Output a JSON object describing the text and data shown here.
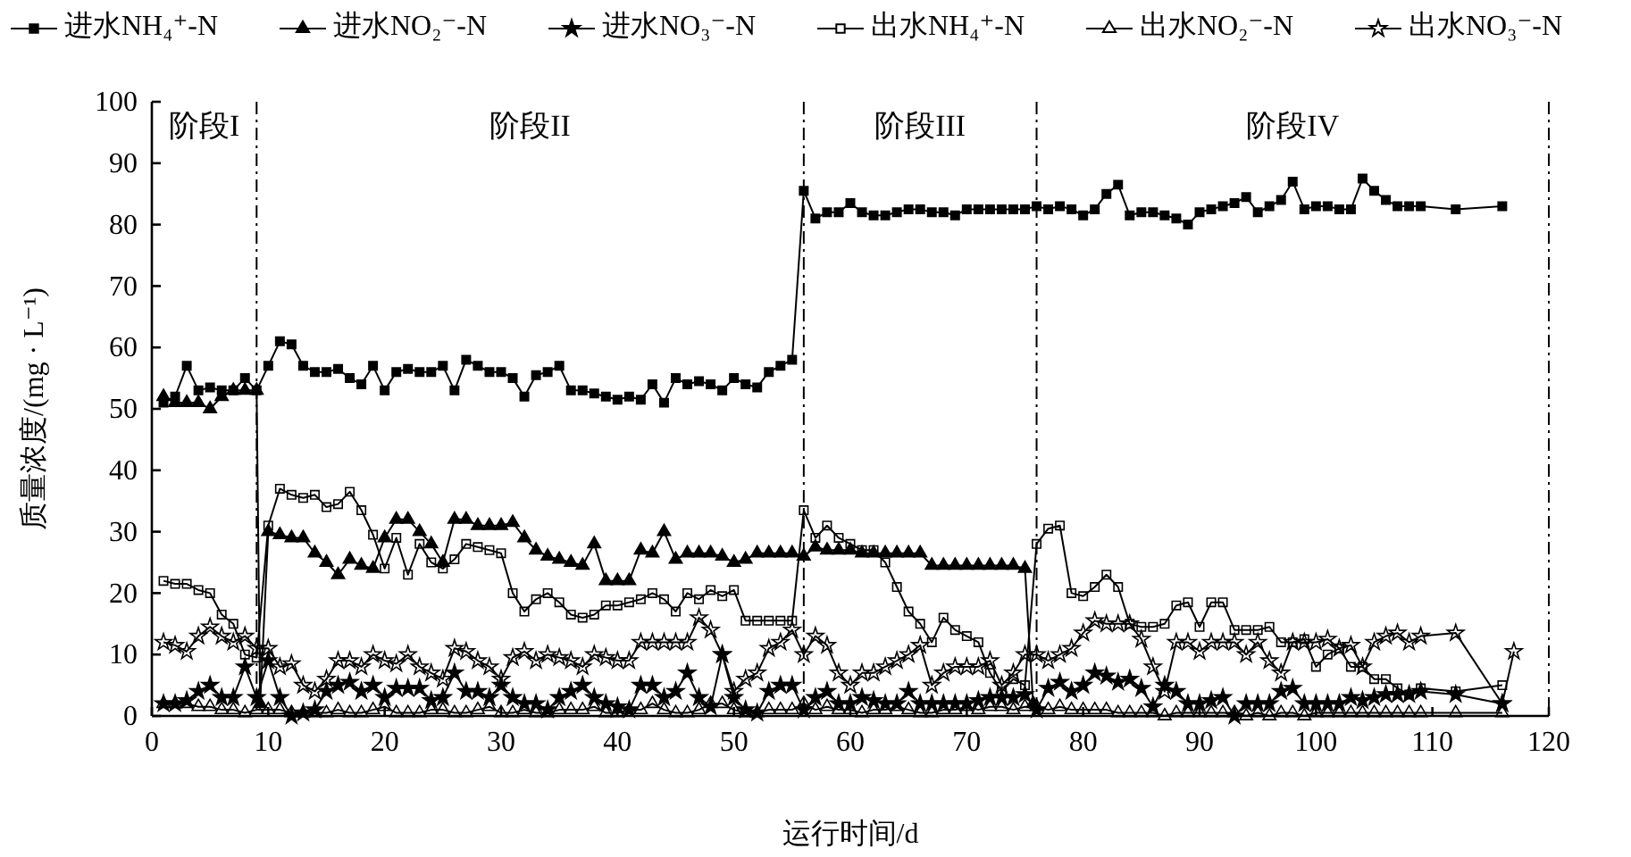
{
  "chart_data": {
    "type": "line",
    "xlabel": "运行时间/d",
    "ylabel": "质量浓度/(mg · L⁻¹)",
    "xlim": [
      0,
      120
    ],
    "xticks": [
      0,
      10,
      20,
      30,
      40,
      50,
      60,
      70,
      80,
      90,
      100,
      110,
      120
    ],
    "ylim": [
      0,
      100
    ],
    "yticks": [
      0,
      10,
      20,
      30,
      40,
      50,
      60,
      70,
      80,
      90,
      100
    ],
    "grid": false,
    "legend": "top",
    "ref_lines": [
      {
        "axis": "x",
        "value": 9,
        "line_style": "dashed"
      },
      {
        "axis": "x",
        "value": 56,
        "line_style": "dashed"
      },
      {
        "axis": "x",
        "value": 76,
        "line_style": "dashed"
      },
      {
        "axis": "x",
        "value": 120,
        "line_style": "dashed"
      }
    ],
    "annotations": [
      "阶段I",
      "阶段II",
      "阶段III",
      "阶段IV"
    ],
    "series": [
      {
        "name": "进水NH₄⁺-N",
        "color": "#000000",
        "marker": "square",
        "x": [
          1,
          2,
          3,
          4,
          5,
          6,
          7,
          8,
          9,
          10,
          11,
          12,
          13,
          14,
          15,
          16,
          17,
          18,
          19,
          20,
          21,
          22,
          23,
          24,
          25,
          26,
          27,
          28,
          29,
          30,
          31,
          32,
          33,
          34,
          35,
          36,
          37,
          38,
          39,
          40,
          41,
          42,
          43,
          44,
          45,
          46,
          47,
          48,
          49,
          50,
          51,
          52,
          53,
          54,
          55,
          56,
          57,
          58,
          59,
          60,
          61,
          62,
          63,
          64,
          65,
          66,
          67,
          68,
          69,
          70,
          71,
          72,
          73,
          74,
          75,
          76,
          77,
          78,
          79,
          80,
          81,
          82,
          83,
          84,
          85,
          86,
          87,
          88,
          89,
          90,
          91,
          92,
          93,
          94,
          95,
          96,
          97,
          98,
          99,
          100,
          101,
          102,
          103,
          104,
          105,
          106,
          107,
          108,
          109,
          112,
          116
        ],
        "values": [
          51,
          52,
          57,
          53,
          53.5,
          53,
          53,
          55,
          53,
          57,
          61,
          60.5,
          57,
          56,
          56,
          56.5,
          55,
          54,
          57,
          53,
          56,
          56.5,
          56,
          56,
          57,
          53,
          58,
          57,
          56,
          56,
          55,
          52,
          55.5,
          56,
          57,
          53,
          53,
          52.5,
          52,
          51.5,
          52,
          51.5,
          54,
          51,
          55,
          54,
          54.5,
          54,
          53,
          55,
          54,
          53.5,
          56,
          57,
          58,
          85.5,
          81,
          82,
          82,
          83.5,
          82,
          81.5,
          81.5,
          82,
          82.5,
          82.5,
          82,
          82,
          81.5,
          82.5,
          82.5,
          82.5,
          82.5,
          82.5,
          82.5,
          83,
          82.5,
          83,
          82.5,
          81.5,
          82.5,
          85,
          86.5,
          81.5,
          82,
          82,
          81.5,
          81,
          80,
          82,
          82.5,
          83,
          83.5,
          84.5,
          82,
          83,
          84,
          87,
          82.5,
          83,
          83,
          82.5,
          82.5,
          87.5,
          85.5,
          84,
          83,
          83,
          83,
          82.5,
          83
        ]
      },
      {
        "name": "进水NO₂⁻-N",
        "color": "#000000",
        "marker": "triangle",
        "x": [
          1,
          2,
          3,
          4,
          5,
          6,
          7,
          8,
          9,
          9.3,
          10,
          11,
          12,
          13,
          14,
          15,
          16,
          17,
          18,
          19,
          20,
          21,
          22,
          23,
          24,
          25,
          26,
          27,
          28,
          29,
          30,
          31,
          32,
          33,
          34,
          35,
          36,
          37,
          38,
          39,
          40,
          41,
          42,
          43,
          44,
          45,
          46,
          47,
          48,
          49,
          50,
          51,
          52,
          53,
          54,
          55,
          56,
          57,
          58,
          59,
          60,
          61,
          62,
          63,
          64,
          65,
          66,
          67,
          68,
          69,
          70,
          71,
          72,
          73,
          74,
          75,
          75.7
        ],
        "values": [
          52,
          51,
          51,
          51,
          50,
          52,
          53,
          53,
          53,
          2,
          30,
          29.5,
          29,
          29,
          26.5,
          25,
          23,
          25.5,
          24.5,
          24,
          29,
          32,
          32,
          30,
          28,
          25,
          32,
          32,
          31,
          31,
          31,
          31.5,
          29,
          27,
          26,
          25.5,
          25,
          24.5,
          28,
          22,
          22,
          22,
          27,
          26.5,
          30,
          25.5,
          26.5,
          26.5,
          26.5,
          26,
          25,
          25.5,
          26.5,
          26.5,
          26.5,
          26.5,
          26,
          27.5,
          27,
          27,
          27,
          26.5,
          26.5,
          26.5,
          26.5,
          26.5,
          26.5,
          24.5,
          24.5,
          24.5,
          24.5,
          24.5,
          24.5,
          24.5,
          24.5,
          24,
          2
        ]
      },
      {
        "name": "进水NO₃⁻-N",
        "color": "#000000",
        "marker": "star",
        "x": [
          1,
          2,
          3,
          4,
          5,
          6,
          7,
          8,
          9,
          10,
          11,
          12,
          13,
          14,
          15,
          16,
          17,
          18,
          19,
          20,
          21,
          22,
          23,
          24,
          25,
          26,
          27,
          28,
          29,
          30,
          31,
          32,
          33,
          34,
          35,
          36,
          37,
          38,
          39,
          40,
          41,
          42,
          43,
          44,
          45,
          46,
          47,
          48,
          49,
          50,
          51,
          52,
          53,
          54,
          55,
          56,
          57,
          58,
          59,
          60,
          61,
          62,
          63,
          64,
          65,
          66,
          67,
          68,
          69,
          70,
          71,
          72,
          73,
          74,
          75,
          76,
          77,
          78,
          79,
          80,
          81,
          82,
          83,
          84,
          85,
          86,
          87,
          88,
          89,
          90,
          91,
          92,
          93,
          94,
          95,
          96,
          97,
          98,
          99,
          100,
          101,
          102,
          103,
          104,
          105,
          106,
          107,
          108,
          109,
          112,
          116
        ],
        "values": [
          2,
          2,
          2.5,
          4,
          5,
          3,
          3,
          8,
          3,
          9,
          3,
          0,
          0.5,
          1,
          4,
          5,
          5.5,
          4,
          5,
          3,
          4.5,
          4.5,
          4.5,
          2.5,
          3,
          7,
          4,
          4,
          3,
          5,
          3,
          2,
          2,
          1,
          3,
          4,
          5,
          3,
          2,
          1.5,
          1,
          5,
          5,
          3,
          4,
          7,
          3,
          1.5,
          10,
          3,
          1,
          0.5,
          4,
          5,
          5,
          1,
          3,
          4,
          2,
          2,
          3,
          2.5,
          2,
          2,
          4,
          2,
          2,
          2,
          2,
          2,
          2.5,
          3,
          3,
          3,
          3.5,
          1,
          4.5,
          5.5,
          4,
          5,
          7,
          6.5,
          5.5,
          6,
          4.5,
          1.5,
          5,
          4,
          2,
          2,
          2.5,
          3,
          0,
          2,
          2,
          2,
          4,
          4.5,
          2,
          2,
          2,
          2,
          3,
          2.5,
          3,
          3.5,
          3.5,
          3.5,
          4,
          3.5,
          2
        ]
      },
      {
        "name": "出水NH₄⁺-N",
        "color": "#000000",
        "marker": "square-open",
        "x": [
          1,
          2,
          3,
          4,
          5,
          6,
          7,
          8,
          9,
          10,
          11,
          12,
          13,
          14,
          15,
          16,
          17,
          18,
          19,
          20,
          21,
          22,
          23,
          24,
          25,
          26,
          27,
          28,
          29,
          30,
          31,
          32,
          33,
          34,
          35,
          36,
          37,
          38,
          39,
          40,
          41,
          42,
          43,
          44,
          45,
          46,
          47,
          48,
          49,
          50,
          51,
          52,
          53,
          54,
          55,
          56,
          57,
          58,
          59,
          60,
          61,
          62,
          63,
          64,
          65,
          66,
          67,
          68,
          69,
          70,
          71,
          72,
          73,
          74,
          75,
          76,
          77,
          78,
          79,
          80,
          81,
          82,
          83,
          84,
          85,
          86,
          87,
          88,
          89,
          90,
          91,
          92,
          93,
          94,
          95,
          96,
          97,
          98,
          99,
          100,
          101,
          102,
          103,
          104,
          105,
          106,
          107,
          108,
          109,
          112,
          116
        ],
        "values": [
          22,
          21.5,
          21.5,
          20.5,
          20,
          16.5,
          15,
          10,
          9.5,
          31,
          37,
          36,
          35.5,
          36,
          34,
          34.5,
          36.5,
          33.5,
          29.5,
          24,
          29,
          23,
          28,
          25,
          24,
          25.5,
          28,
          27.5,
          27,
          26.5,
          20,
          17,
          19,
          20,
          18.5,
          16.5,
          16,
          16.5,
          18,
          18,
          18.5,
          19,
          20,
          19,
          17,
          20,
          19,
          20.5,
          19.5,
          20.5,
          15.5,
          15.5,
          15.5,
          15.5,
          15.5,
          33.5,
          29,
          31,
          29,
          28,
          27,
          27,
          25,
          21,
          17,
          15,
          12,
          16,
          14,
          13,
          12,
          7,
          4,
          6,
          5,
          28,
          30.5,
          31,
          20,
          19.5,
          21,
          23,
          21,
          15,
          14.5,
          14.5,
          15,
          18,
          18.5,
          14.5,
          18.5,
          18.5,
          14,
          14,
          14,
          14.5,
          12,
          12,
          12.5,
          8,
          10,
          11,
          8,
          8,
          6,
          6,
          4.5,
          3.5,
          4.5,
          4,
          5
        ]
      },
      {
        "name": "出水NO₂⁻-N",
        "color": "#000000",
        "marker": "triangle-open",
        "x": [
          1,
          2,
          3,
          4,
          5,
          6,
          7,
          8,
          9,
          10,
          11,
          12,
          13,
          14,
          15,
          16,
          17,
          18,
          19,
          20,
          21,
          22,
          23,
          24,
          25,
          26,
          27,
          28,
          29,
          30,
          31,
          32,
          33,
          34,
          35,
          36,
          37,
          38,
          39,
          40,
          41,
          42,
          43,
          44,
          45,
          46,
          47,
          48,
          49,
          50,
          51,
          52,
          53,
          54,
          55,
          56,
          57,
          58,
          59,
          60,
          61,
          62,
          63,
          64,
          65,
          66,
          67,
          68,
          69,
          70,
          71,
          72,
          73,
          74,
          75,
          76,
          77,
          78,
          79,
          80,
          81,
          82,
          83,
          84,
          85,
          86,
          87,
          88,
          89,
          90,
          91,
          92,
          93,
          94,
          95,
          96,
          97,
          98,
          99,
          100,
          101,
          102,
          103,
          104,
          105,
          106,
          107,
          108,
          109,
          112,
          116
        ],
        "values": [
          2,
          2,
          2,
          1.5,
          1.5,
          1,
          1,
          0.5,
          1,
          1,
          1,
          0.5,
          0.5,
          0.5,
          0.5,
          1,
          0.5,
          0.5,
          1,
          1.5,
          0.5,
          0.5,
          0.5,
          1,
          1,
          0.5,
          0.5,
          1,
          1.5,
          0.5,
          0.5,
          1,
          0.5,
          0.5,
          1,
          1,
          1,
          1.5,
          0.5,
          0.5,
          1,
          1,
          2,
          1,
          0.5,
          0.5,
          1,
          2,
          2,
          1,
          0.5,
          0.5,
          1,
          1,
          1,
          2,
          1,
          1.5,
          1,
          1,
          0.5,
          1,
          1,
          1.5,
          1,
          0.5,
          0.5,
          1,
          1,
          1.5,
          1,
          1.5,
          1.5,
          1,
          1.5,
          1.5,
          1,
          1.5,
          1,
          1,
          1,
          1,
          0.5,
          0.5,
          0.5,
          0.5,
          0,
          0.5,
          0.5,
          0.5,
          0.5,
          0.5,
          0.5,
          0,
          0.5,
          0,
          0.5,
          0.5,
          0,
          0.5,
          0.5,
          0.5,
          0.5,
          0.5,
          0.5,
          0.5,
          0.5,
          0.5,
          0.5,
          0.5,
          0.5
        ]
      },
      {
        "name": "出水NO₃⁻-N",
        "color": "#000000",
        "marker": "star-open",
        "x": [
          1,
          2,
          3,
          4,
          5,
          6,
          7,
          8,
          9,
          10,
          11,
          12,
          13,
          14,
          15,
          16,
          17,
          18,
          19,
          20,
          21,
          22,
          23,
          24,
          25,
          26,
          27,
          28,
          29,
          30,
          31,
          32,
          33,
          34,
          35,
          36,
          37,
          38,
          39,
          40,
          41,
          42,
          43,
          44,
          45,
          46,
          47,
          48,
          49,
          50,
          51,
          52,
          53,
          54,
          55,
          56,
          57,
          58,
          59,
          60,
          61,
          62,
          63,
          64,
          65,
          66,
          67,
          68,
          69,
          70,
          71,
          72,
          73,
          74,
          75,
          76,
          77,
          78,
          79,
          80,
          81,
          82,
          83,
          84,
          85,
          86,
          87,
          88,
          89,
          90,
          91,
          92,
          93,
          94,
          95,
          96,
          97,
          98,
          99,
          100,
          101,
          102,
          103,
          104,
          105,
          106,
          107,
          108,
          109,
          112,
          116,
          117
        ],
        "values": [
          12,
          11.5,
          10.5,
          13,
          14.5,
          13,
          12,
          13,
          11,
          11,
          8,
          8.5,
          5,
          4,
          6,
          9,
          9,
          8,
          10,
          9,
          8.5,
          10,
          8,
          7,
          6,
          11,
          10.5,
          9,
          8,
          6,
          9.5,
          10.5,
          9,
          10,
          9.5,
          9,
          8,
          10,
          9.5,
          9,
          9,
          12,
          12,
          12,
          12,
          12,
          16,
          14,
          10,
          4,
          6,
          7,
          11,
          12,
          14,
          10,
          13,
          11.5,
          7,
          5,
          7,
          7,
          8,
          9,
          10,
          11.5,
          5,
          7,
          8,
          8,
          8,
          9,
          5,
          7,
          10,
          10,
          9,
          10,
          11,
          13.5,
          15.5,
          15,
          15,
          15,
          12.5,
          8,
          4,
          12,
          12,
          10.5,
          12,
          12,
          12,
          10,
          12,
          9,
          7,
          12,
          12,
          12,
          12.5,
          11,
          11.5,
          8,
          12,
          13,
          13.5,
          12,
          13,
          13.5,
          2,
          10.5
        ]
      }
    ]
  }
}
